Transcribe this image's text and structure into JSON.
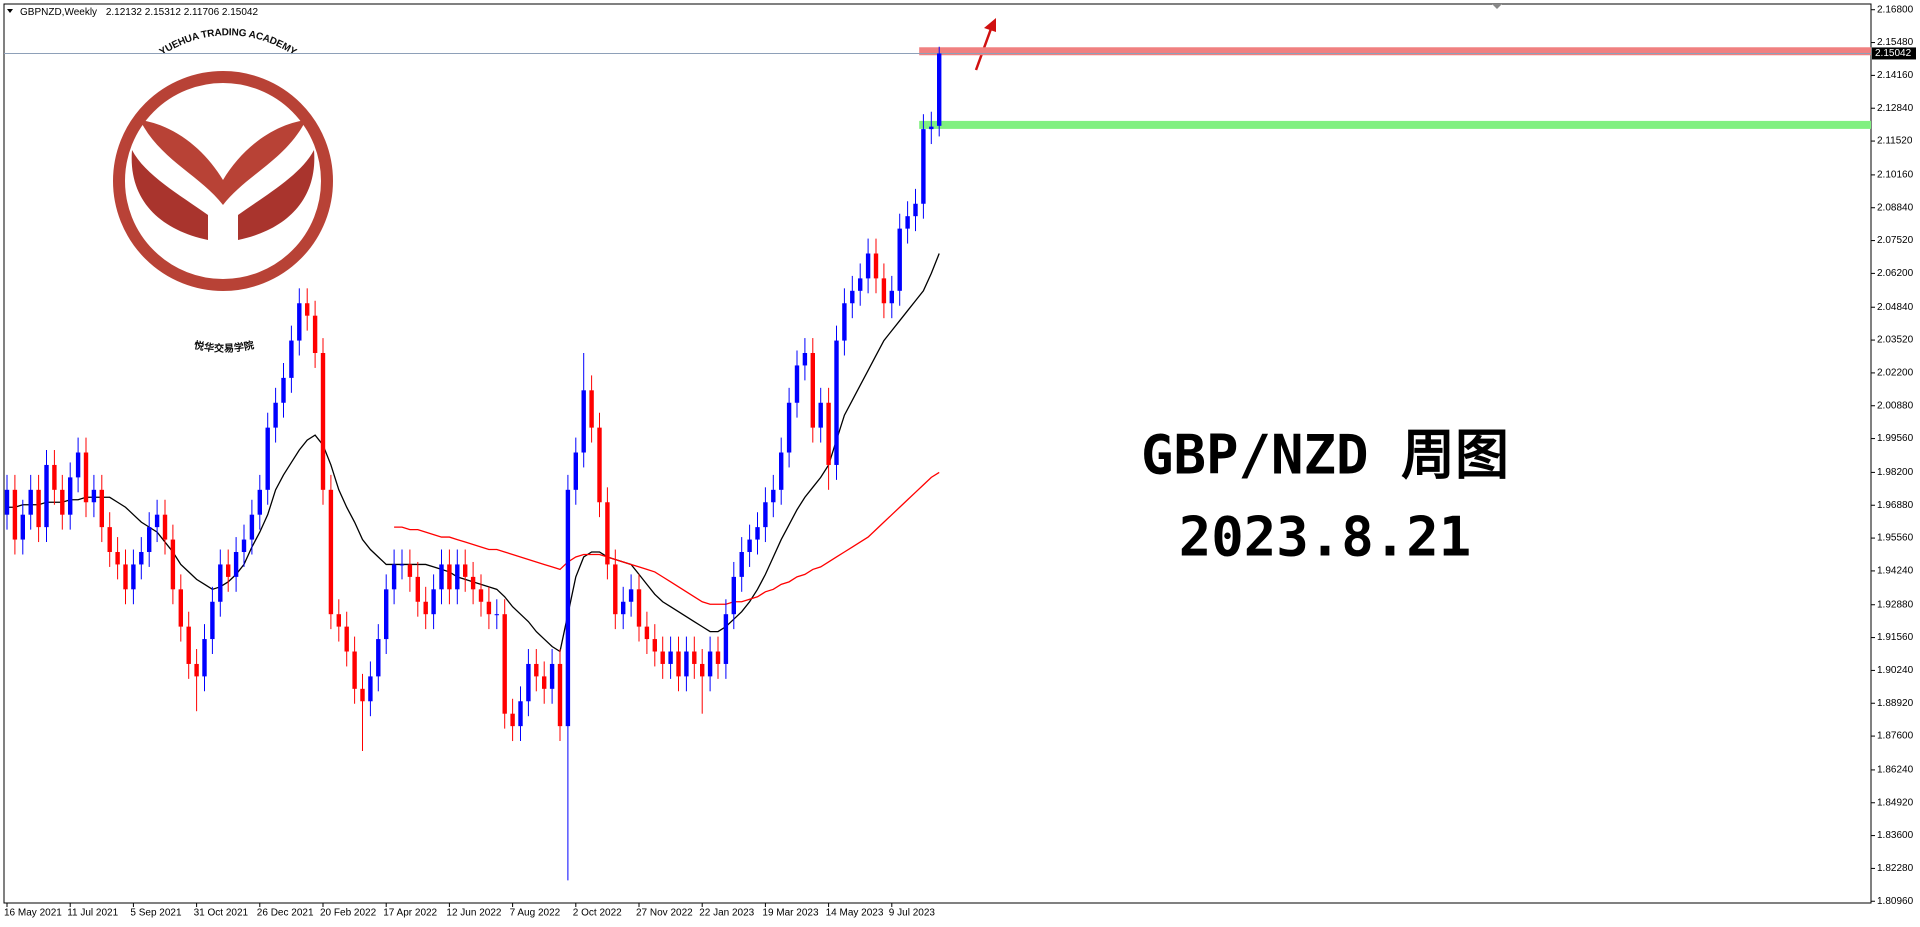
{
  "chart_data": {
    "type": "candlestick",
    "symbol": "GBPNZD,Weekly",
    "categories": [
      "16 May 2021",
      null,
      null,
      null,
      null,
      null,
      null,
      null,
      "11 Jul 2021",
      null,
      null,
      null,
      null,
      null,
      null,
      null,
      "5 Sep 2021",
      null,
      null,
      null,
      null,
      null,
      null,
      null,
      "31 Oct 2021",
      null,
      null,
      null,
      null,
      null,
      null,
      null,
      "26 Dec 2021",
      null,
      null,
      null,
      null,
      null,
      null,
      null,
      "20 Feb 2022",
      null,
      null,
      null,
      null,
      null,
      null,
      null,
      "17 Apr 2022",
      null,
      null,
      null,
      null,
      null,
      null,
      null,
      "12 Jun 2022",
      null,
      null,
      null,
      null,
      null,
      null,
      null,
      "7 Aug 2022",
      null,
      null,
      null,
      null,
      null,
      null,
      null,
      "2 Oct 2022",
      null,
      null,
      null,
      null,
      null,
      null,
      null,
      "27 Nov 2022",
      null,
      null,
      null,
      null,
      null,
      null,
      null,
      "22 Jan 2023",
      null,
      null,
      null,
      null,
      null,
      null,
      null,
      "19 Mar 2023",
      null,
      null,
      null,
      null,
      null,
      null,
      null,
      "14 May 2023",
      null,
      null,
      null,
      null,
      null,
      null,
      null,
      "9 Jul 2023",
      null,
      null,
      null,
      null,
      null,
      null
    ],
    "open": [
      1.965,
      1.975,
      1.955,
      1.965,
      1.975,
      1.96,
      1.985,
      1.975,
      1.965,
      1.98,
      1.99,
      1.97,
      1.975,
      1.96,
      1.95,
      1.945,
      1.935,
      1.945,
      1.95,
      1.96,
      1.965,
      1.955,
      1.935,
      1.92,
      1.905,
      1.9,
      1.915,
      1.93,
      1.945,
      1.94,
      1.95,
      1.955,
      1.965,
      1.975,
      2.0,
      2.01,
      2.02,
      2.035,
      2.05,
      2.045,
      2.03,
      1.975,
      1.925,
      1.92,
      1.91,
      1.895,
      1.89,
      1.9,
      1.915,
      1.935,
      1.945,
      1.945,
      1.94,
      1.93,
      1.925,
      1.935,
      1.945,
      1.935,
      1.945,
      1.94,
      1.935,
      1.93,
      1.925,
      1.925,
      1.885,
      1.88,
      1.89,
      1.905,
      1.9,
      1.895,
      1.905,
      1.88,
      1.975,
      1.99,
      2.015,
      2.0,
      1.97,
      1.945,
      1.925,
      1.93,
      1.935,
      1.92,
      1.915,
      1.91,
      1.905,
      1.91,
      1.9,
      1.91,
      1.905,
      1.9,
      1.91,
      1.905,
      1.925,
      1.94,
      1.95,
      1.955,
      1.96,
      1.97,
      1.975,
      1.99,
      2.01,
      2.025,
      2.03,
      2.0,
      2.01,
      1.985,
      2.035,
      2.05,
      2.055,
      2.06,
      2.07,
      2.06,
      2.05,
      2.055,
      2.08,
      2.085,
      2.09,
      2.12,
      2.12132
    ],
    "high": [
      1.981,
      1.981,
      1.971,
      1.981,
      1.981,
      1.991,
      1.991,
      1.981,
      1.986,
      1.996,
      1.996,
      1.981,
      1.981,
      1.966,
      1.956,
      1.951,
      1.951,
      1.956,
      1.966,
      1.971,
      1.971,
      1.961,
      1.941,
      1.926,
      1.911,
      1.921,
      1.936,
      1.951,
      1.951,
      1.956,
      1.961,
      1.971,
      1.981,
      2.006,
      2.016,
      2.026,
      2.041,
      2.056,
      2.056,
      2.051,
      2.036,
      1.981,
      1.931,
      1.926,
      1.916,
      1.901,
      1.906,
      1.921,
      1.941,
      1.951,
      1.951,
      1.951,
      1.946,
      1.936,
      1.941,
      1.951,
      1.951,
      1.951,
      1.951,
      1.946,
      1.941,
      1.936,
      1.931,
      1.931,
      1.891,
      1.896,
      1.911,
      1.911,
      1.906,
      1.911,
      1.911,
      1.981,
      1.996,
      2.03,
      2.021,
      2.006,
      1.976,
      1.951,
      1.936,
      1.941,
      1.941,
      1.926,
      1.921,
      1.916,
      1.916,
      1.916,
      1.916,
      1.916,
      1.911,
      1.916,
      1.916,
      1.931,
      1.946,
      1.956,
      1.961,
      1.966,
      1.976,
      1.981,
      1.996,
      2.016,
      2.031,
      2.036,
      2.036,
      2.016,
      2.016,
      2.041,
      2.056,
      2.061,
      2.066,
      2.076,
      2.076,
      2.066,
      2.061,
      2.086,
      2.091,
      2.096,
      2.126,
      2.127,
      2.15312
    ],
    "low": [
      1.959,
      1.949,
      1.949,
      1.959,
      1.954,
      1.954,
      1.969,
      1.959,
      1.959,
      1.974,
      1.964,
      1.964,
      1.954,
      1.944,
      1.939,
      1.929,
      1.929,
      1.939,
      1.944,
      1.954,
      1.949,
      1.929,
      1.914,
      1.899,
      1.886,
      1.894,
      1.909,
      1.924,
      1.934,
      1.934,
      1.944,
      1.949,
      1.959,
      1.969,
      1.994,
      2.004,
      2.014,
      2.029,
      2.039,
      2.024,
      1.969,
      1.919,
      1.914,
      1.904,
      1.889,
      1.87,
      1.884,
      1.894,
      1.909,
      1.929,
      1.939,
      1.934,
      1.924,
      1.919,
      1.919,
      1.929,
      1.929,
      1.929,
      1.934,
      1.929,
      1.924,
      1.919,
      1.919,
      1.879,
      1.874,
      1.874,
      1.884,
      1.894,
      1.889,
      1.889,
      1.874,
      1.818,
      1.969,
      1.984,
      1.994,
      1.964,
      1.939,
      1.919,
      1.919,
      1.924,
      1.914,
      1.909,
      1.904,
      1.899,
      1.899,
      1.894,
      1.894,
      1.899,
      1.885,
      1.894,
      1.899,
      1.899,
      1.919,
      1.934,
      1.944,
      1.949,
      1.954,
      1.964,
      1.969,
      1.984,
      2.004,
      2.019,
      1.994,
      1.994,
      1.975,
      1.979,
      2.029,
      2.044,
      2.049,
      2.054,
      2.054,
      2.044,
      2.044,
      2.049,
      2.074,
      2.079,
      2.084,
      2.114,
      2.11706
    ],
    "close": [
      1.975,
      1.955,
      1.965,
      1.975,
      1.96,
      1.985,
      1.975,
      1.965,
      1.98,
      1.99,
      1.97,
      1.975,
      1.96,
      1.95,
      1.945,
      1.935,
      1.945,
      1.95,
      1.96,
      1.965,
      1.955,
      1.935,
      1.92,
      1.905,
      1.9,
      1.915,
      1.93,
      1.945,
      1.94,
      1.95,
      1.955,
      1.965,
      1.975,
      2.0,
      2.01,
      2.02,
      2.035,
      2.05,
      2.045,
      2.03,
      1.975,
      1.925,
      1.92,
      1.91,
      1.895,
      1.89,
      1.9,
      1.915,
      1.935,
      1.945,
      1.945,
      1.94,
      1.93,
      1.925,
      1.935,
      1.945,
      1.935,
      1.945,
      1.94,
      1.935,
      1.93,
      1.925,
      1.925,
      1.885,
      1.88,
      1.89,
      1.905,
      1.9,
      1.895,
      1.905,
      1.88,
      1.975,
      1.99,
      2.015,
      2.0,
      1.97,
      1.945,
      1.925,
      1.93,
      1.935,
      1.92,
      1.915,
      1.91,
      1.905,
      1.91,
      1.9,
      1.91,
      1.905,
      1.9,
      1.91,
      1.905,
      1.925,
      1.94,
      1.95,
      1.955,
      1.96,
      1.97,
      1.975,
      1.99,
      2.01,
      2.025,
      2.03,
      2.0,
      2.01,
      1.985,
      2.035,
      2.05,
      2.055,
      2.06,
      2.07,
      2.06,
      2.05,
      2.055,
      2.08,
      2.085,
      2.09,
      2.12,
      2.121,
      2.15042
    ],
    "up_color": "#0000ff",
    "down_color": "#ff0000",
    "series": [
      {
        "color": "#000000",
        "values": [
          1.968,
          1.968,
          1.969,
          1.969,
          1.969,
          1.97,
          1.97,
          1.97,
          1.971,
          1.971,
          1.972,
          1.972,
          1.972,
          1.972,
          1.97,
          1.968,
          1.965,
          1.962,
          1.96,
          1.958,
          1.954,
          1.95,
          1.945,
          1.942,
          1.939,
          1.937,
          1.935,
          1.936,
          1.938,
          1.941,
          1.945,
          1.952,
          1.958,
          1.965,
          1.975,
          1.981,
          1.986,
          1.991,
          1.995,
          1.997,
          1.993,
          1.985,
          1.975,
          1.968,
          1.962,
          1.955,
          1.951,
          1.948,
          1.945,
          1.945,
          1.945,
          1.945,
          1.945,
          1.945,
          1.944,
          1.943,
          1.942,
          1.94,
          1.939,
          1.938,
          1.937,
          1.936,
          1.935,
          1.932,
          1.928,
          1.925,
          1.922,
          1.918,
          1.915,
          1.912,
          1.91,
          1.925,
          1.94,
          1.948,
          1.95,
          1.95,
          1.948,
          1.947,
          1.946,
          1.945,
          1.941,
          1.937,
          1.933,
          1.93,
          1.928,
          1.926,
          1.924,
          1.922,
          1.92,
          1.918,
          1.918,
          1.92,
          1.923,
          1.926,
          1.93,
          1.935,
          1.941,
          1.948,
          1.955,
          1.961,
          1.967,
          1.972,
          1.976,
          1.98,
          1.985,
          1.995,
          2.005,
          2.011,
          2.017,
          2.023,
          2.029,
          2.035,
          2.039,
          2.043,
          2.047,
          2.051,
          2.055,
          2.062,
          2.07
        ]
      },
      {
        "color": "#ff0000",
        "values": [
          null,
          null,
          null,
          null,
          null,
          null,
          null,
          null,
          null,
          null,
          null,
          null,
          null,
          null,
          null,
          null,
          null,
          null,
          null,
          null,
          null,
          null,
          null,
          null,
          null,
          null,
          null,
          null,
          null,
          null,
          null,
          null,
          null,
          null,
          null,
          null,
          null,
          null,
          null,
          null,
          null,
          null,
          null,
          null,
          null,
          null,
          null,
          null,
          null,
          1.96,
          1.96,
          1.959,
          1.959,
          1.958,
          1.957,
          1.956,
          1.956,
          1.955,
          1.954,
          1.953,
          1.952,
          1.951,
          1.951,
          1.95,
          1.949,
          1.948,
          1.947,
          1.946,
          1.945,
          1.944,
          1.943,
          1.946,
          1.948,
          1.949,
          1.949,
          1.949,
          1.948,
          1.947,
          1.946,
          1.945,
          1.944,
          1.943,
          1.942,
          1.94,
          1.938,
          1.936,
          1.934,
          1.932,
          1.93,
          1.929,
          1.929,
          1.929,
          1.93,
          1.93,
          1.931,
          1.932,
          1.934,
          1.935,
          1.937,
          1.938,
          1.94,
          1.941,
          1.943,
          1.944,
          1.946,
          1.948,
          1.95,
          1.952,
          1.954,
          1.956,
          1.959,
          1.962,
          1.965,
          1.968,
          1.971,
          1.974,
          1.977,
          1.98,
          1.982
        ]
      }
    ],
    "zones": [
      {
        "value": 2.1513,
        "color": "#f08080"
      },
      {
        "value": 2.1217,
        "color": "#80f080"
      }
    ],
    "annotations": [
      "GBP/NZD 周图",
      "2023.8.21"
    ],
    "annotation_color": "#a020f0",
    "watermark": [
      "YUEHUA TRADING ACADEMY",
      "悦华交易学院"
    ],
    "ylim": [
      1.8089,
      2.1703
    ],
    "yticks": [
      {
        "value": 2.168,
        "label": "2.16800"
      },
      {
        "value": 2.1548,
        "label": "2.15480"
      },
      {
        "value": 2.1416,
        "label": "2.14160"
      },
      {
        "value": 2.1284,
        "label": "2.12840"
      },
      {
        "value": 2.1152,
        "label": "2.11520"
      },
      {
        "value": 2.1016,
        "label": "2.10160"
      },
      {
        "value": 2.0884,
        "label": "2.08840"
      },
      {
        "value": 2.0752,
        "label": "2.07520"
      },
      {
        "value": 2.062,
        "label": "2.06200"
      },
      {
        "value": 2.0484,
        "label": "2.04840"
      },
      {
        "value": 2.0352,
        "label": "2.03520"
      },
      {
        "value": 2.022,
        "label": "2.02200"
      },
      {
        "value": 2.0088,
        "label": "2.00880"
      },
      {
        "value": 1.9956,
        "label": "1.99560"
      },
      {
        "value": 1.982,
        "label": "1.98200"
      },
      {
        "value": 1.9688,
        "label": "1.96880"
      },
      {
        "value": 1.9556,
        "label": "1.95560"
      },
      {
        "value": 1.9424,
        "label": "1.94240"
      },
      {
        "value": 1.9288,
        "label": "1.92880"
      },
      {
        "value": 1.9156,
        "label": "1.91560"
      },
      {
        "value": 1.9024,
        "label": "1.90240"
      },
      {
        "value": 1.8892,
        "label": "1.88920"
      },
      {
        "value": 1.876,
        "label": "1.87600"
      },
      {
        "value": 1.8624,
        "label": "1.86240"
      },
      {
        "value": 1.8492,
        "label": "1.84920"
      },
      {
        "value": 1.836,
        "label": "1.83600"
      },
      {
        "value": 1.8228,
        "label": "1.82280"
      },
      {
        "value": 1.8096,
        "label": "1.80960"
      }
    ]
  }
}
